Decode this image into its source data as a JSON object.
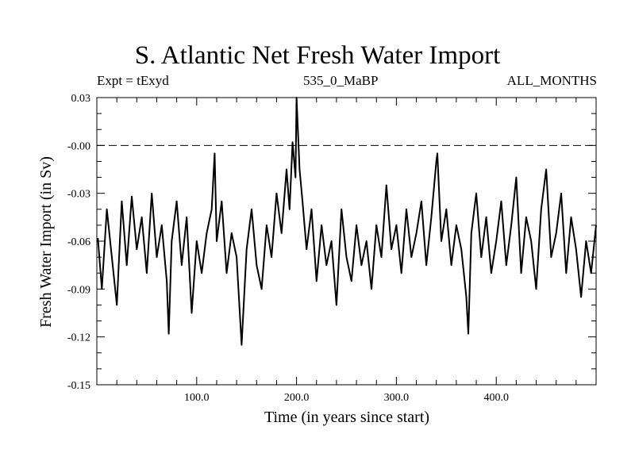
{
  "chart_data": {
    "type": "line",
    "title": "S. Atlantic Net Fresh Water Import",
    "subtitle_left": "Expt = tExyd",
    "subtitle_center": "535_0_MaBP",
    "subtitle_right": "ALL_MONTHS",
    "xlabel": "Time (in years since start)",
    "ylabel": "Fresh Water Import (in Sv)",
    "xlim": [
      0,
      500
    ],
    "ylim": [
      -0.15,
      0.03
    ],
    "x_ticks": [
      100,
      200,
      300,
      400
    ],
    "x_tick_labels": [
      "100.0",
      "200.0",
      "300.0",
      "400.0"
    ],
    "y_ticks": [
      0.03,
      0.0,
      -0.03,
      -0.06,
      -0.09,
      -0.12,
      -0.15
    ],
    "y_tick_labels": [
      "0.03",
      "-0.00",
      "-0.03",
      "-0.06",
      "-0.09",
      "-0.12",
      "-0.15"
    ],
    "zero_reference_line": "dashed",
    "series": [
      {
        "color": "#000000",
        "x": [
          1,
          5,
          10,
          15,
          20,
          25,
          30,
          35,
          40,
          45,
          50,
          55,
          60,
          65,
          70,
          72,
          75,
          80,
          85,
          90,
          95,
          100,
          105,
          110,
          115,
          118,
          120,
          125,
          130,
          135,
          140,
          145,
          150,
          155,
          160,
          165,
          170,
          175,
          180,
          185,
          190,
          193,
          196,
          199,
          200,
          203,
          206,
          210,
          215,
          220,
          225,
          230,
          235,
          240,
          245,
          250,
          255,
          260,
          265,
          270,
          275,
          280,
          285,
          290,
          295,
          300,
          305,
          310,
          315,
          320,
          325,
          330,
          335,
          340,
          341,
          345,
          350,
          355,
          360,
          365,
          370,
          372,
          375,
          380,
          385,
          390,
          395,
          400,
          405,
          410,
          415,
          420,
          425,
          430,
          435,
          440,
          445,
          450,
          455,
          460,
          465,
          470,
          475,
          480,
          485,
          490,
          495,
          500
        ],
        "y": [
          -0.058,
          -0.09,
          -0.04,
          -0.07,
          -0.1,
          -0.035,
          -0.075,
          -0.032,
          -0.065,
          -0.045,
          -0.08,
          -0.03,
          -0.07,
          -0.05,
          -0.085,
          -0.118,
          -0.06,
          -0.035,
          -0.075,
          -0.045,
          -0.105,
          -0.06,
          -0.08,
          -0.055,
          -0.04,
          -0.005,
          -0.06,
          -0.035,
          -0.08,
          -0.055,
          -0.07,
          -0.125,
          -0.065,
          -0.04,
          -0.075,
          -0.09,
          -0.05,
          -0.07,
          -0.03,
          -0.055,
          -0.015,
          -0.04,
          0.002,
          -0.02,
          0.03,
          -0.015,
          -0.035,
          -0.065,
          -0.04,
          -0.085,
          -0.05,
          -0.075,
          -0.06,
          -0.1,
          -0.04,
          -0.07,
          -0.085,
          -0.05,
          -0.075,
          -0.06,
          -0.09,
          -0.05,
          -0.07,
          -0.025,
          -0.065,
          -0.05,
          -0.08,
          -0.04,
          -0.07,
          -0.055,
          -0.035,
          -0.075,
          -0.045,
          -0.01,
          -0.005,
          -0.06,
          -0.04,
          -0.075,
          -0.05,
          -0.065,
          -0.095,
          -0.118,
          -0.055,
          -0.03,
          -0.07,
          -0.045,
          -0.08,
          -0.06,
          -0.035,
          -0.075,
          -0.05,
          -0.02,
          -0.08,
          -0.045,
          -0.06,
          -0.09,
          -0.04,
          -0.015,
          -0.07,
          -0.055,
          -0.03,
          -0.08,
          -0.045,
          -0.065,
          -0.095,
          -0.06,
          -0.08,
          -0.05
        ]
      }
    ]
  }
}
